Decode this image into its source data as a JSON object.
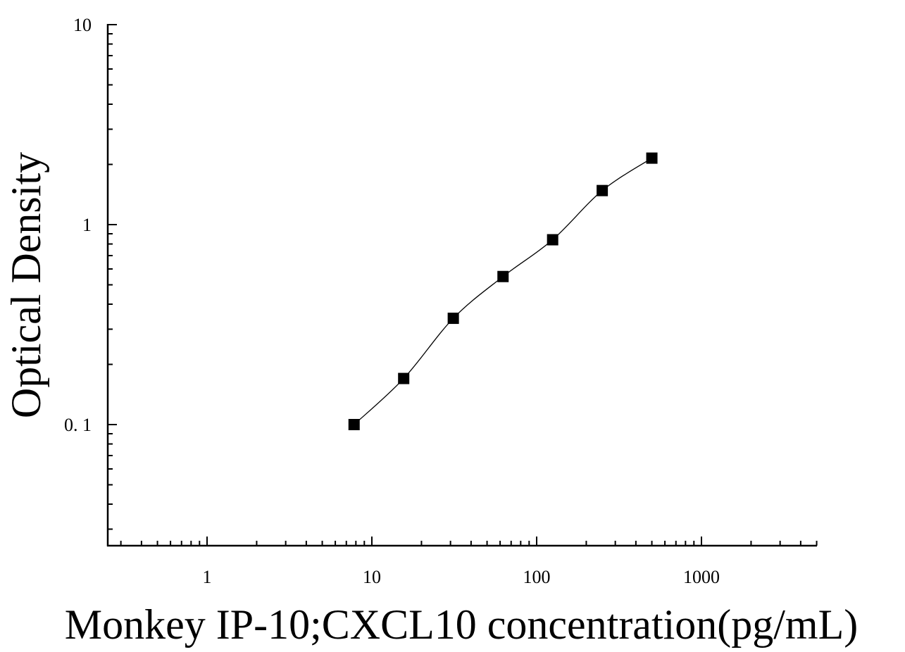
{
  "chart_data": {
    "type": "scatter",
    "xlabel": "Monkey IP-10;CXCL10 concentration(pg/mL)",
    "ylabel": "Optical Density",
    "xscale": "log",
    "yscale": "log",
    "xlim": [
      0.25,
      5000
    ],
    "ylim": [
      0.027,
      10
    ],
    "xticks": [
      1,
      10,
      100,
      1000
    ],
    "xtick_labels": [
      "1",
      "10",
      "100",
      "1000"
    ],
    "yticks": [
      0.1,
      1,
      10
    ],
    "ytick_labels": [
      "0. 1",
      "1",
      "10"
    ],
    "grid": false,
    "legend": "none",
    "marker": "square",
    "color": "#000000",
    "series": [
      {
        "x": [
          7.8,
          15.6,
          31.2,
          62.5,
          125,
          250,
          500
        ],
        "y": [
          0.1,
          0.17,
          0.34,
          0.55,
          0.84,
          1.48,
          2.15
        ]
      }
    ],
    "fit_curve": true
  }
}
